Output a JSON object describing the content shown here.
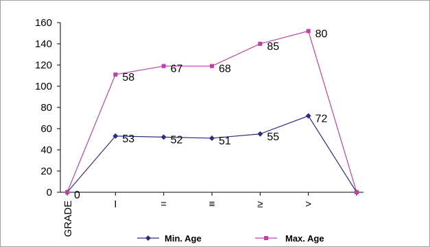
{
  "chart_data": {
    "type": "line",
    "categories": [
      "GRADE",
      "I",
      "II",
      "III",
      "IV",
      "V",
      ""
    ],
    "category_tick_labels": [
      "GRADE",
      "I",
      "=",
      "≡",
      "≥",
      ">",
      ""
    ],
    "ylim": [
      0,
      160
    ],
    "yticks": [
      0,
      20,
      40,
      60,
      80,
      100,
      120,
      140,
      160
    ],
    "grid": false,
    "legend_position": "bottom",
    "series": [
      {
        "name": "Min. Age",
        "color": "#2b2e80",
        "marker": "diamond",
        "values": [
          0,
          53,
          52,
          51,
          55,
          72,
          0
        ],
        "labels": [
          "0",
          "53",
          "52",
          "51",
          "55",
          "72",
          ""
        ]
      },
      {
        "name": "Max. Age",
        "color": "#c040a8",
        "marker": "square",
        "values": [
          0,
          111,
          119,
          119,
          140,
          152,
          0
        ],
        "labels": [
          "",
          "58",
          "67",
          "68",
          "85",
          "80",
          ""
        ]
      }
    ]
  }
}
